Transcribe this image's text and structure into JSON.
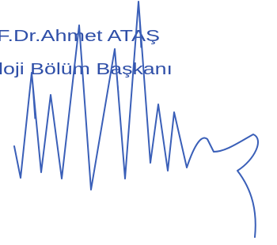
{
  "signature_block": {
    "name": "F.Dr.Ahmet ATAŞ",
    "title": "loji Bölüm Başkanı"
  }
}
